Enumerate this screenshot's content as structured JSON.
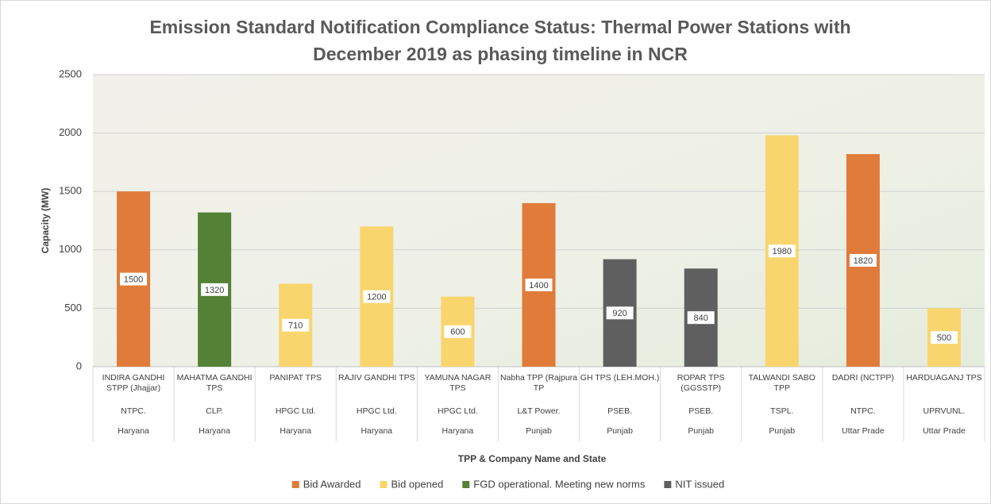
{
  "chart_data": {
    "type": "bar",
    "title": [
      "Emission Standard Notification Compliance Status: Thermal Power Stations with",
      "December 2019 as phasing timeline in NCR"
    ],
    "y_label": "Capacity (MW)",
    "x_label": "TPP & Company Name and State",
    "categories": [
      "INDIRA GANDHI STPP (Jhajjar)",
      "MAHATMA GANDHI TPS",
      "PANIPAT TPS",
      "RAJIV GANDHI TPS",
      "YAMUNA NAGAR TPS",
      "Nabha TPP (Rajpura TP",
      "GH TPS (LEH.MOH.)",
      "ROPAR TPS (GGSSTP)",
      "TALWANDI SABO TPP",
      "DADRI (NCTPP)",
      "HARDUAGANJ TPS"
    ],
    "companies": [
      "NTPC.",
      "CLP.",
      "HPGC Ltd.",
      "HPGC Ltd.",
      "HPGC Ltd.",
      "L&T Power.",
      "PSEB.",
      "PSEB.",
      "TSPL.",
      "NTPC.",
      "UPRVUNL."
    ],
    "states": [
      "Haryana",
      "Haryana",
      "Haryana",
      "Haryana",
      "Haryana",
      "Punjab",
      "Punjab",
      "Punjab",
      "Punjab",
      "Uttar Prade",
      "Uttar Prade"
    ],
    "series": [
      {
        "name": "Bid Awarded",
        "color": "#e07b39",
        "values": [
          1500,
          null,
          null,
          null,
          null,
          1400,
          null,
          null,
          null,
          1820,
          null
        ]
      },
      {
        "name": "Bid opened",
        "color": "#f9d56e",
        "values": [
          null,
          null,
          710,
          1200,
          600,
          null,
          null,
          null,
          1980,
          null,
          500
        ]
      },
      {
        "name": "FGD operational. Meeting new norms",
        "color": "#538135",
        "values": [
          null,
          1320,
          null,
          null,
          null,
          null,
          null,
          null,
          null,
          null,
          null
        ]
      },
      {
        "name": "NIT issued",
        "color": "#5f5f5f",
        "values": [
          null,
          null,
          null,
          null,
          null,
          null,
          920,
          840,
          null,
          null,
          null
        ]
      }
    ],
    "ylim": [
      0,
      2500
    ],
    "yticks": [
      0,
      500,
      1000,
      1500,
      2000,
      2500
    ],
    "grid": true,
    "legend": "bottom"
  }
}
